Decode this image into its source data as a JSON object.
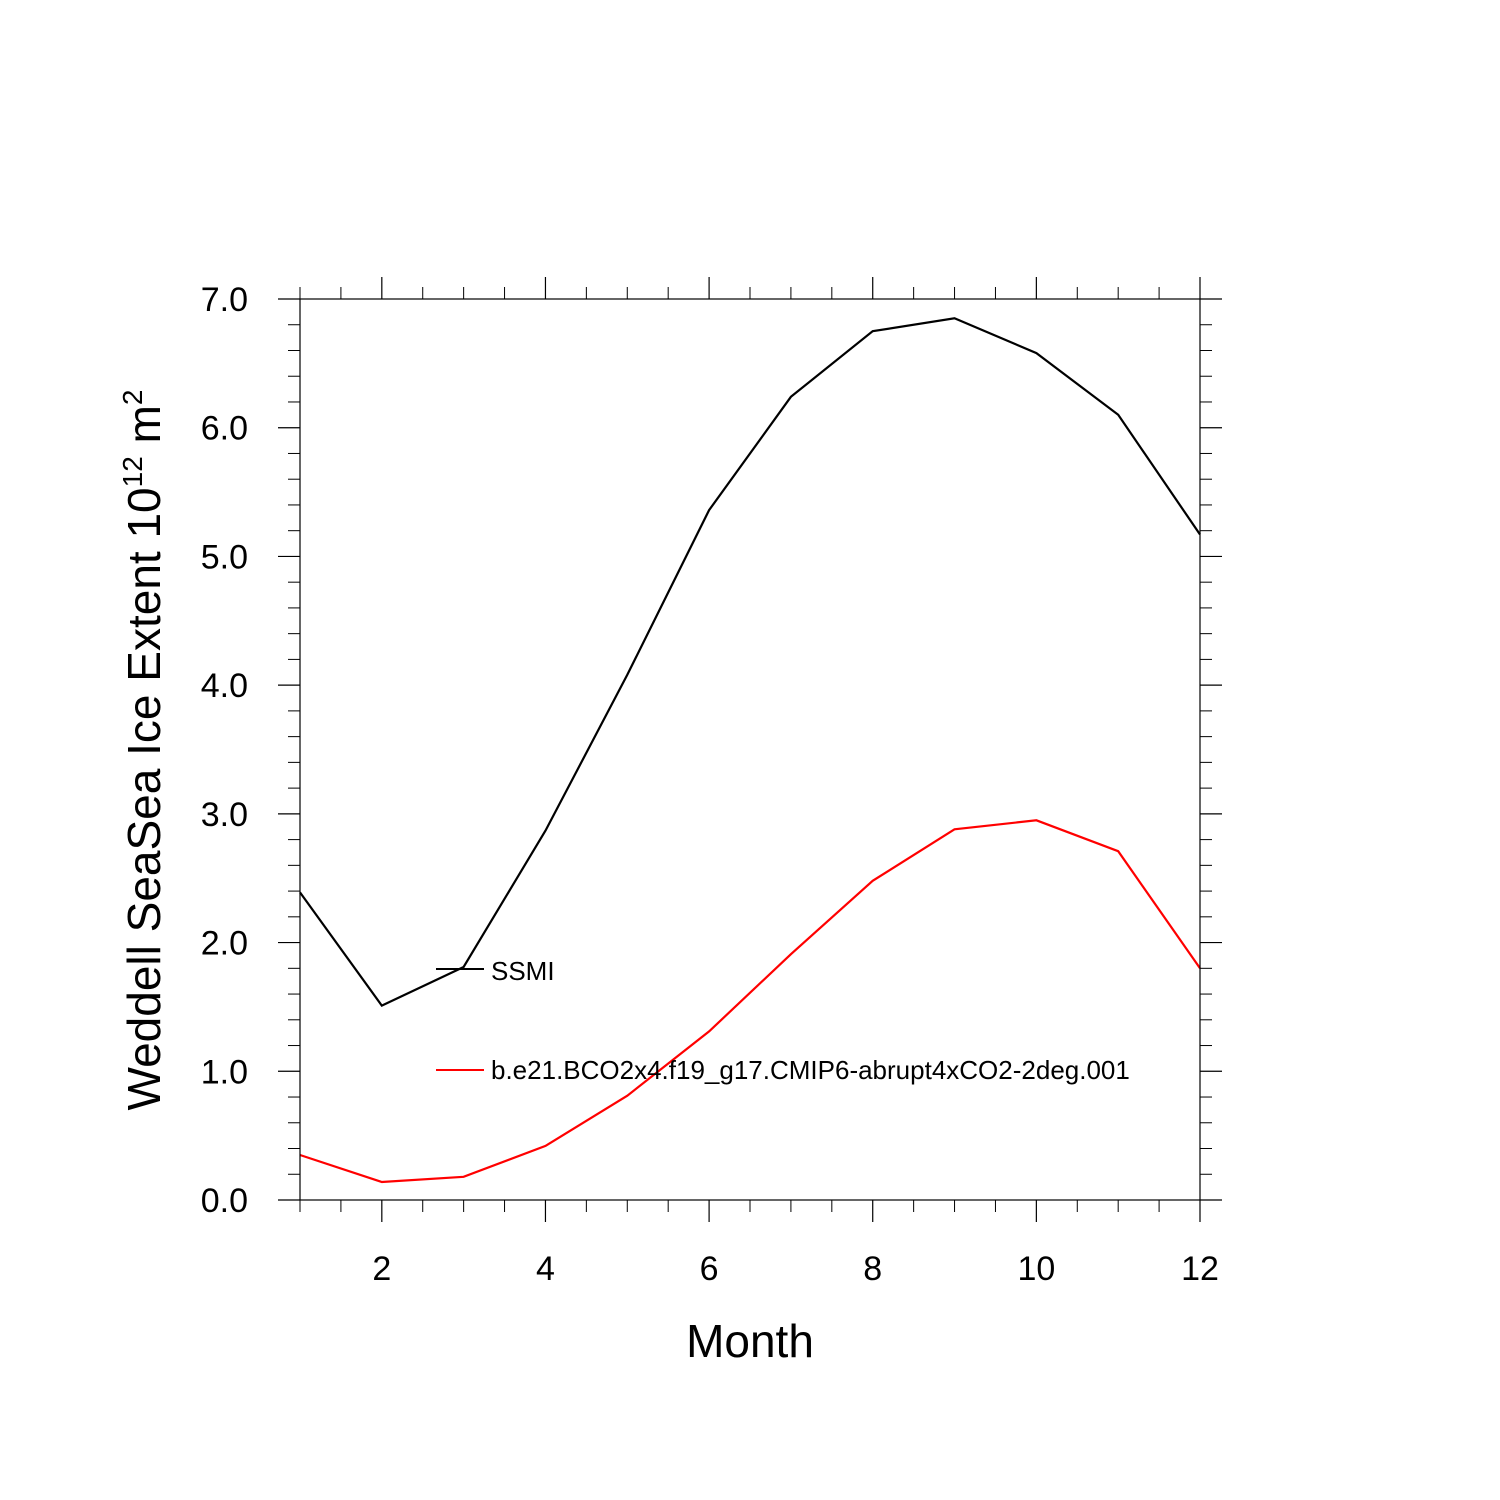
{
  "chart_data": {
    "type": "line",
    "title": "",
    "xlabel": "Month",
    "ylabel_main": "Weddell SeaSea Ice Extent 10",
    "ylabel_exp1": "12",
    "ylabel_mid": " m",
    "ylabel_exp2": "2",
    "xlim": [
      1,
      12
    ],
    "ylim": [
      0,
      7
    ],
    "xticks": [
      2,
      4,
      6,
      8,
      10,
      12
    ],
    "xtick_labels": [
      "2",
      "4",
      "6",
      "8",
      "10",
      "12"
    ],
    "yticks": [
      0,
      1,
      2,
      3,
      4,
      5,
      6,
      7
    ],
    "ytick_labels": [
      "0.0",
      "1.0",
      "2.0",
      "3.0",
      "4.0",
      "5.0",
      "6.0",
      "7.0"
    ],
    "x": [
      1,
      2,
      3,
      4,
      5,
      6,
      7,
      8,
      9,
      10,
      11,
      12
    ],
    "series": [
      {
        "name": "SSMI",
        "color": "#000000",
        "values": [
          2.39,
          1.51,
          1.81,
          2.87,
          4.08,
          5.36,
          6.24,
          6.75,
          6.85,
          6.58,
          6.1,
          5.17
        ]
      },
      {
        "name": "b.e21.BCO2x4.f19_g17.CMIP6-abrupt4xCO2-2deg.001",
        "color": "#ff0000",
        "values": [
          0.35,
          0.14,
          0.18,
          0.42,
          0.81,
          1.31,
          1.91,
          2.48,
          2.88,
          2.95,
          2.71,
          1.8
        ]
      }
    ],
    "legend_position": "inside-center-left"
  }
}
